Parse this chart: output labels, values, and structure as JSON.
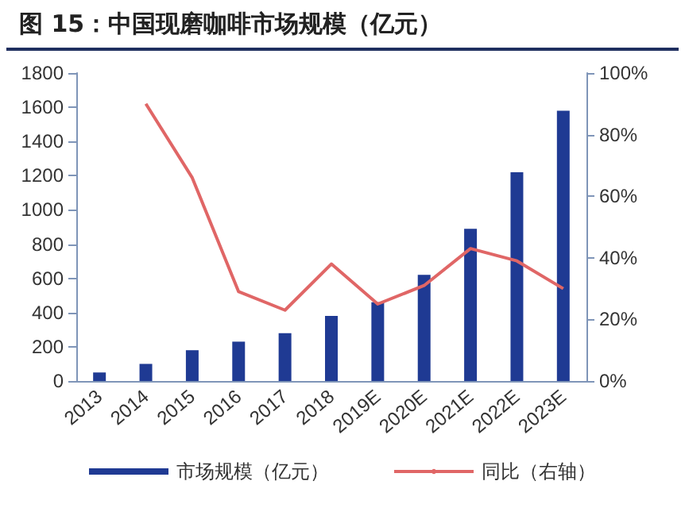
{
  "chart_data": {
    "type": "bar",
    "title": "图 15：中国现磨咖啡市场规模（亿元）",
    "categories": [
      "2013",
      "2014",
      "2015",
      "2016",
      "2017",
      "2018",
      "2019E",
      "2020E",
      "2021E",
      "2022E",
      "2023E"
    ],
    "series": [
      {
        "name": "市场规模（亿元）",
        "color": "#1f3a93",
        "values": [
          50,
          100,
          180,
          230,
          280,
          380,
          460,
          620,
          890,
          1220,
          1580
        ]
      },
      {
        "name": "同比（右轴）",
        "type": "line",
        "axis": "y2",
        "color": "#e06666",
        "values": [
          null,
          90,
          66,
          29,
          23,
          38,
          25,
          31,
          43,
          39,
          30
        ]
      }
    ],
    "ylim": [
      0,
      1800
    ],
    "yticks": [
      0,
      200,
      400,
      600,
      800,
      1000,
      1200,
      1400,
      1600,
      1800
    ],
    "y2lim": [
      0,
      100
    ],
    "y2ticks": [
      {
        "value": 0,
        "label": "0%"
      },
      {
        "value": 20,
        "label": "20%"
      },
      {
        "value": 40,
        "label": "40%"
      },
      {
        "value": 60,
        "label": "60%"
      },
      {
        "value": 80,
        "label": "80%"
      },
      {
        "value": 100,
        "label": "100%"
      }
    ],
    "grid": false,
    "legend": "bottom",
    "marker": "none",
    "line_style": "solid"
  }
}
